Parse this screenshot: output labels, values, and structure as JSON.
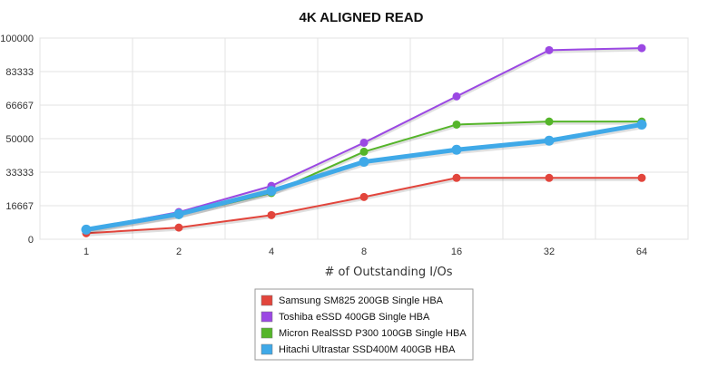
{
  "chart_data": {
    "type": "line",
    "title": "4K ALIGNED READ",
    "xlabel": "# of Outstanding I/Os",
    "ylabel": "",
    "categories": [
      "1",
      "2",
      "4",
      "8",
      "16",
      "32",
      "64"
    ],
    "y_ticks": [
      "0",
      "16667",
      "33333",
      "50000",
      "66667",
      "83333",
      "100000"
    ],
    "ylim": [
      0,
      100000
    ],
    "grid": true,
    "legend_position": "bottom-center",
    "series": [
      {
        "name": "Samsung SM825 200GB Single HBA",
        "color": "#e2453c",
        "values": [
          3000,
          5800,
          12000,
          21000,
          30500,
          30500,
          30500
        ]
      },
      {
        "name": "Toshiba eSSD 400GB Single HBA",
        "color": "#9b48e3",
        "values": [
          5000,
          13500,
          26500,
          48000,
          71000,
          94000,
          95000
        ]
      },
      {
        "name": "Micron RealSSD P300 100GB Single HBA",
        "color": "#55b52a",
        "values": [
          4500,
          12000,
          23000,
          43500,
          57000,
          58500,
          58500
        ]
      },
      {
        "name": "Hitachi Ultrastar SSD400M 400GB HBA",
        "color": "#3fa9e8",
        "values": [
          4800,
          12500,
          24000,
          38500,
          44500,
          49000,
          57000
        ]
      }
    ]
  }
}
